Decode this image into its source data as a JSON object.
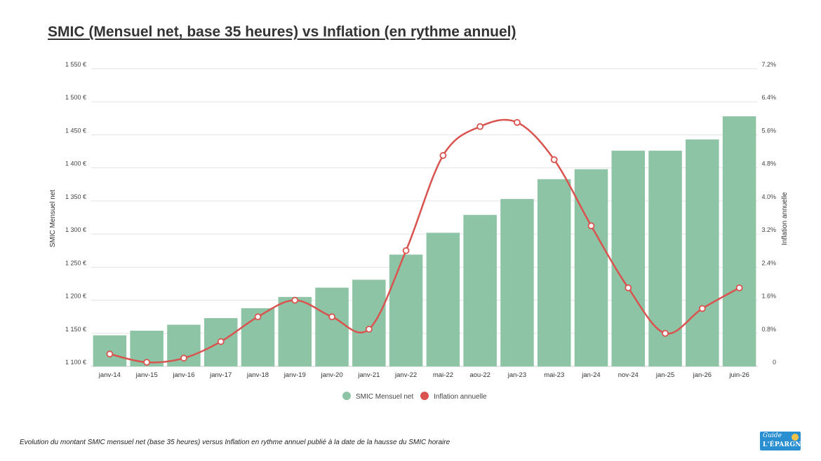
{
  "title": "SMIC (Mensuel net, base 35 heures) vs Inflation (en rythme annuel)",
  "caption": "Evolution du montant SMIC mensuel net (base 35 heures) versus Inflation en rythme annuel publié à la date de la hausse du SMIC horaire",
  "logo": {
    "line1": "Guide",
    "line2": "L'ÉPARGNE"
  },
  "colors": {
    "bar": "#8dc4a6",
    "line": "#d9534f",
    "grid": "#e3e3e3",
    "text": "#444444"
  },
  "chart_data": {
    "type": "bar",
    "categories": [
      "janv-14",
      "janv-15",
      "janv-16",
      "janv-17",
      "janv-18",
      "janv-19",
      "janv-20",
      "janv-21",
      "janv-22",
      "mai-22",
      "aou-22",
      "jan-23",
      "mai-23",
      "jan-24",
      "nov-24",
      "jan-25",
      "jan-26",
      "juin-26"
    ],
    "ylabel": "SMIC Mensuel net",
    "y2label": "Inflation annuelle",
    "ylim": [
      1100,
      1550
    ],
    "y2lim": [
      0,
      7.2
    ],
    "yticks": [
      "1 100 €",
      "1 150 €",
      "1 200 €",
      "1 250 €",
      "1 300 €",
      "1 350 €",
      "1 400 €",
      "1 450 €",
      "1 500 €",
      "1 550 €"
    ],
    "y2ticks": [
      "0",
      "0.8%",
      "1.6%",
      "2.4%",
      "3.2%",
      "4.0%",
      "4.8%",
      "5.6%",
      "6.4%",
      "7.2%"
    ],
    "grid": true,
    "legend_position": "bottom-center",
    "series": [
      {
        "name": "SMIC Mensuel net",
        "type": "bar",
        "axis": "left",
        "color": "#8dc4a6",
        "values": [
          1147,
          1154,
          1163,
          1173,
          1188,
          1205,
          1219,
          1231,
          1269,
          1302,
          1329,
          1353,
          1383,
          1398,
          1426,
          1426,
          1443,
          1478
        ]
      },
      {
        "name": "Inflation annuelle",
        "type": "line",
        "axis": "right",
        "color": "#d9534f",
        "values": [
          0.3,
          0.1,
          0.2,
          0.6,
          1.2,
          1.6,
          1.2,
          0.9,
          2.8,
          5.1,
          5.8,
          5.9,
          5.0,
          3.4,
          1.9,
          0.8,
          1.4,
          1.9
        ]
      }
    ]
  }
}
